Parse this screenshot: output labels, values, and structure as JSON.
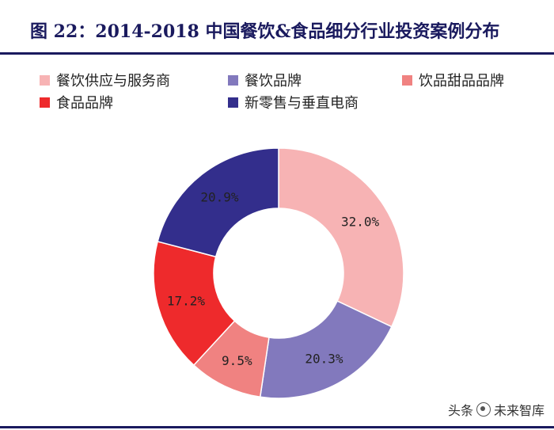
{
  "chart_data": {
    "type": "pie",
    "title": "图 22：2014-2018 中国餐饮&食品细分行业投资案例分布",
    "categories": [
      "餐饮供应与服务商",
      "餐饮品牌",
      "饮品甜品品牌",
      "食品品牌",
      "新零售与垂直电商"
    ],
    "values": [
      32.0,
      20.3,
      9.5,
      17.2,
      20.9
    ],
    "labels": [
      "32.0%",
      "20.3%",
      "9.5%",
      "17.2%",
      "20.9%"
    ],
    "colors": [
      "#f7b3b4",
      "#8279bd",
      "#f08281",
      "#ee2a2c",
      "#332e8c"
    ],
    "donut": true,
    "legend_position": "top"
  },
  "watermark": {
    "prefix": "头条",
    "source": "未来智库"
  }
}
